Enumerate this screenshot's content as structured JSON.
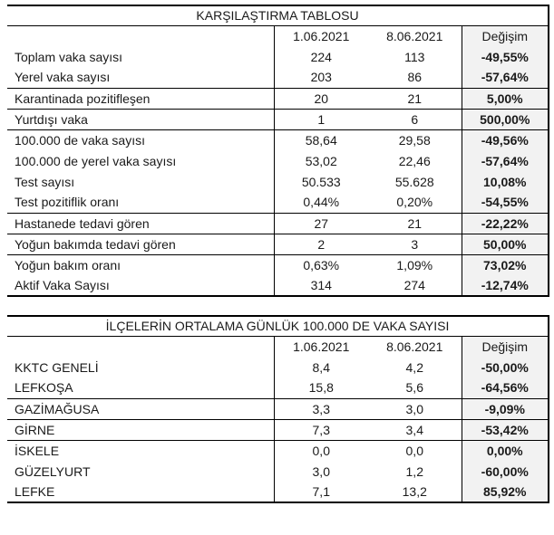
{
  "colors": {
    "border": "#000000",
    "change_column_bg": "#f2f2f2",
    "text": "#1a1a1a",
    "background": "#ffffff"
  },
  "tables": [
    {
      "title": "KARŞILAŞTIRMA TABLOSU",
      "columns": [
        "",
        "1.06.2021",
        "8.06.2021",
        "Değişim"
      ],
      "rows": [
        {
          "label": "Toplam vaka sayısı",
          "v1": "224",
          "v2": "113",
          "change": "-49,55%"
        },
        {
          "label": "Yerel vaka sayısı",
          "v1": "203",
          "v2": "86",
          "change": "-57,64%"
        },
        {
          "label": "Karantinada pozitifleşen",
          "v1": "20",
          "v2": "21",
          "change": "5,00%"
        },
        {
          "label": "Yurtdışı vaka",
          "v1": "1",
          "v2": "6",
          "change": "500,00%"
        },
        {
          "label": "100.000 de vaka sayısı",
          "v1": "58,64",
          "v2": "29,58",
          "change": "-49,56%"
        },
        {
          "label": "100.000 de yerel vaka sayısı",
          "v1": "53,02",
          "v2": "22,46",
          "change": "-57,64%"
        },
        {
          "label": "Test sayısı",
          "v1": "50.533",
          "v2": "55.628",
          "change": "10,08%"
        },
        {
          "label": "Test pozitiflik oranı",
          "v1": "0,44%",
          "v2": "0,20%",
          "change": "-54,55%"
        },
        {
          "label": "Hastanede tedavi gören",
          "v1": "27",
          "v2": "21",
          "change": "-22,22%"
        },
        {
          "label": "Yoğun bakımda tedavi gören",
          "v1": "2",
          "v2": "3",
          "change": "50,00%"
        },
        {
          "label": "Yoğun bakım oranı",
          "v1": "0,63%",
          "v2": "1,09%",
          "change": "73,02%"
        },
        {
          "label": "Aktif Vaka Sayısı",
          "v1": "314",
          "v2": "274",
          "change": "-12,74%"
        }
      ]
    },
    {
      "title": "İLÇELERİN ORTALAMA GÜNLÜK 100.000 DE VAKA SAYISI",
      "columns": [
        "",
        "1.06.2021",
        "8.06.2021",
        "Değişim"
      ],
      "rows": [
        {
          "label": "KKTC GENELİ",
          "v1": "8,4",
          "v2": "4,2",
          "change": "-50,00%"
        },
        {
          "label": "LEFKOŞA",
          "v1": "15,8",
          "v2": "5,6",
          "change": "-64,56%"
        },
        {
          "label": "GAZİMAĞUSA",
          "v1": "3,3",
          "v2": "3,0",
          "change": "-9,09%"
        },
        {
          "label": "GİRNE",
          "v1": "7,3",
          "v2": "3,4",
          "change": "-53,42%"
        },
        {
          "label": "İSKELE",
          "v1": "0,0",
          "v2": "0,0",
          "change": "0,00%"
        },
        {
          "label": "GÜZELYURT",
          "v1": "3,0",
          "v2": "1,2",
          "change": "-60,00%"
        },
        {
          "label": "LEFKE",
          "v1": "7,1",
          "v2": "13,2",
          "change": "85,92%"
        }
      ]
    }
  ]
}
